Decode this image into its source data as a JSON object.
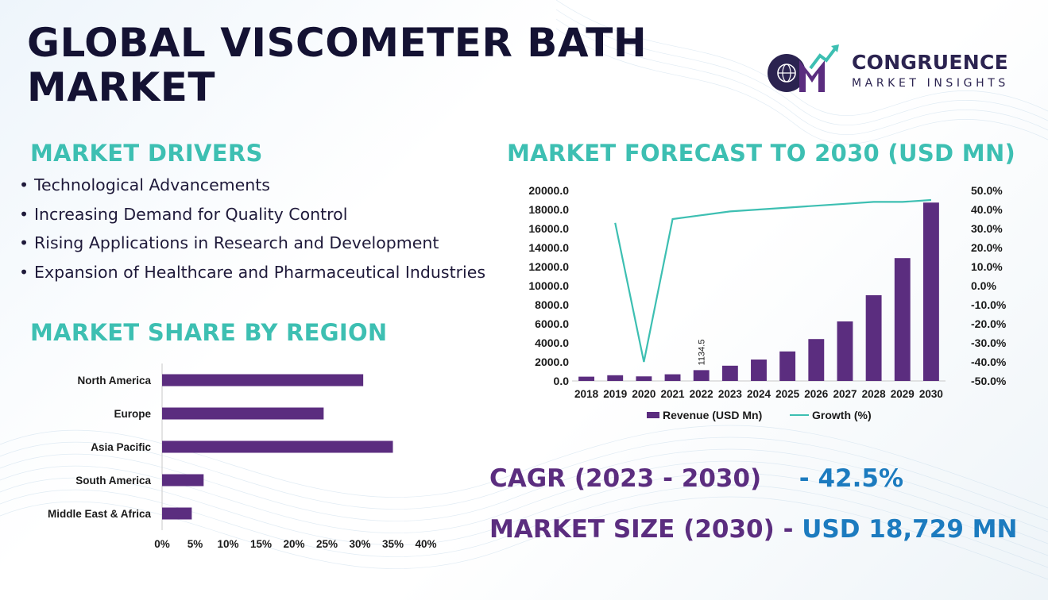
{
  "title": "GLOBAL VISCOMETER BATH MARKET",
  "logo": {
    "name": "CONGRUENCE",
    "tagline": "MARKET INSIGHTS",
    "icon": "cmi-globe-logo-icon"
  },
  "drivers": {
    "heading": "MARKET DRIVERS",
    "items": [
      "Technological Advancements",
      "Increasing Demand for Quality Control",
      "Rising Applications in Research and Development",
      "Expansion of Healthcare and Pharmaceutical Industries"
    ]
  },
  "forecast_heading": "MARKET FORECAST TO 2030 (USD MN)",
  "region_heading": "MARKET SHARE BY REGION",
  "cagr": {
    "label": "CAGR (2023 - 2030)",
    "value": "- 42.5%"
  },
  "market_size": {
    "label": "MARKET SIZE (2030) -",
    "value": "USD 18,729 MN"
  },
  "colors": {
    "accent_teal": "#3dbfb2",
    "bar_purple": "#5b2d7f",
    "value_blue": "#1c7bbf",
    "title_navy": "#141233"
  },
  "chart_data": [
    {
      "type": "bar+line",
      "categories": [
        "2018",
        "2019",
        "2020",
        "2021",
        "2022",
        "2023",
        "2024",
        "2025",
        "2026",
        "2027",
        "2028",
        "2029",
        "2030"
      ],
      "series": [
        {
          "name": "Revenue (USD Mn)",
          "type": "bar",
          "axis": "left",
          "values": [
            450,
            600,
            480,
            700,
            1134.5,
            1600,
            2250,
            3100,
            4400,
            6250,
            9000,
            12900,
            18729
          ]
        },
        {
          "name": "Growth (%)",
          "type": "line",
          "axis": "right",
          "values": [
            null,
            33,
            -40,
            35,
            37,
            39,
            40,
            41,
            42,
            43,
            44,
            44,
            45
          ]
        }
      ],
      "data_labels": [
        {
          "category": "2022",
          "text": "1134.5"
        }
      ],
      "y_left": {
        "min": 0,
        "max": 20000,
        "step": 2000,
        "ticks": [
          "0.0",
          "2000.0",
          "4000.0",
          "6000.0",
          "8000.0",
          "10000.0",
          "12000.0",
          "14000.0",
          "16000.0",
          "18000.0",
          "20000.0"
        ]
      },
      "y_right": {
        "min": -50,
        "max": 50,
        "step": 10,
        "ticks": [
          "-50.0%",
          "-40.0%",
          "-30.0%",
          "-20.0%",
          "-10.0%",
          "0.0%",
          "10.0%",
          "20.0%",
          "30.0%",
          "40.0%",
          "50.0%"
        ]
      },
      "legend": {
        "placement": "bottom",
        "items": [
          "Revenue (USD Mn)",
          "Growth (%)"
        ]
      },
      "grid": false
    },
    {
      "type": "bar",
      "orientation": "horizontal",
      "categories": [
        "North America",
        "Europe",
        "Asia Pacific",
        "South America",
        "Middle East & Africa"
      ],
      "values": [
        30.5,
        24.5,
        35,
        6.3,
        4.5
      ],
      "x_ticks": [
        "0%",
        "5%",
        "10%",
        "15%",
        "20%",
        "25%",
        "30%",
        "35%",
        "40%"
      ],
      "xlim": [
        0,
        40
      ],
      "grid": false
    }
  ]
}
